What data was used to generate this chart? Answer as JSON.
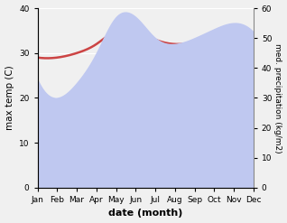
{
  "months": [
    "Jan",
    "Feb",
    "Mar",
    "Apr",
    "May",
    "Jun",
    "Jul",
    "Aug",
    "Sep",
    "Oct",
    "Nov",
    "Dec"
  ],
  "temp_max": [
    29,
    29,
    30,
    32,
    35,
    35,
    33,
    32,
    32,
    31,
    30,
    30
  ],
  "precip": [
    36,
    30,
    35,
    45,
    57,
    57,
    50,
    48,
    50,
    53,
    55,
    52
  ],
  "temp_color": "#cc4444",
  "precip_fill_color": "#bfc8f0",
  "xlabel": "date (month)",
  "ylabel_left": "max temp (C)",
  "ylabel_right": "med. precipitation (kg/m2)",
  "ylim_left": [
    0,
    40
  ],
  "ylim_right": [
    0,
    60
  ],
  "yticks_left": [
    0,
    10,
    20,
    30,
    40
  ],
  "yticks_right": [
    0,
    10,
    20,
    30,
    40,
    50,
    60
  ],
  "bg_color": "#f0f0f0"
}
